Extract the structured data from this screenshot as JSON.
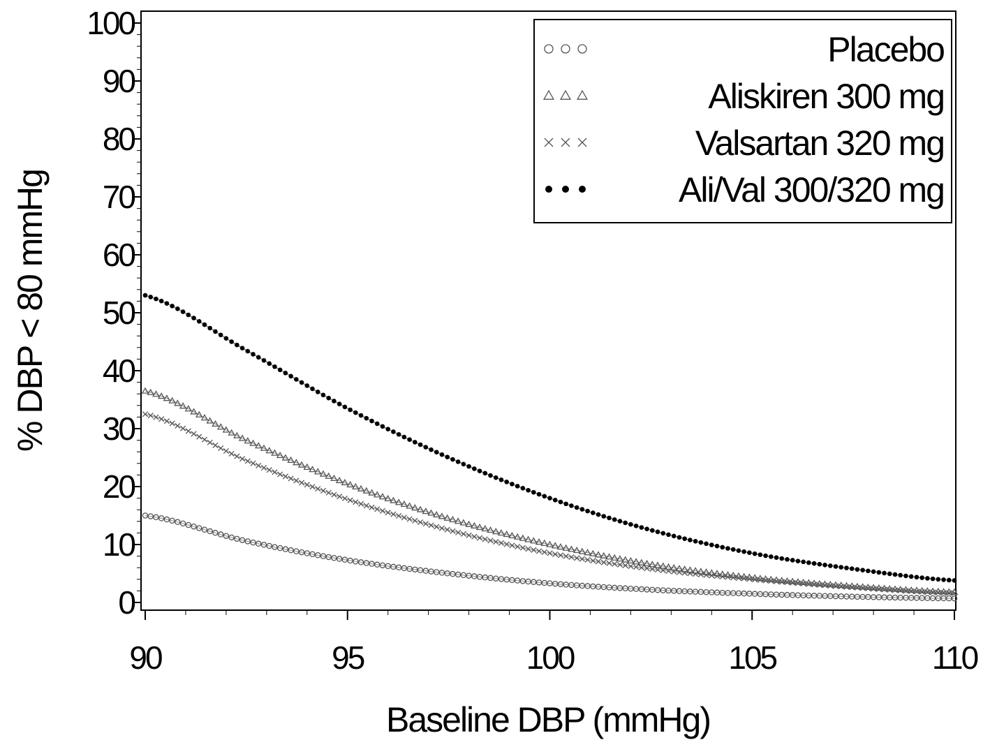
{
  "chart_data": {
    "type": "scatter",
    "title": "",
    "xlabel": "Baseline DBP (mmHg)",
    "ylabel": "% DBP < 80 mmHg",
    "xlim": [
      90,
      110
    ],
    "ylim": [
      0,
      100
    ],
    "xticks": [
      90,
      95,
      100,
      105,
      110
    ],
    "yticks": [
      0,
      10,
      20,
      30,
      40,
      50,
      60,
      70,
      80,
      90,
      100
    ],
    "grid": false,
    "legend_position": "top-right",
    "series": [
      {
        "name": "Placebo",
        "marker": "circle",
        "color": "#555555",
        "x": [
          90,
          92.5,
          95,
          97.5,
          100,
          102.5,
          105,
          107.5,
          110
        ],
        "y": [
          15.0,
          10.6,
          7.3,
          5.0,
          3.3,
          2.2,
          1.5,
          1.0,
          0.7
        ]
      },
      {
        "name": "Aliskiren 300 mg",
        "marker": "triangle",
        "color": "#555555",
        "x": [
          90,
          92.5,
          95,
          97.5,
          100,
          102.5,
          105,
          107.5,
          110
        ],
        "y": [
          36.5,
          28.0,
          20.5,
          14.5,
          10.0,
          6.6,
          4.3,
          2.8,
          1.8
        ]
      },
      {
        "name": "Valsartan 320 mg",
        "marker": "cross",
        "color": "#555555",
        "x": [
          90,
          92.5,
          95,
          97.5,
          100,
          102.5,
          105,
          107.5,
          110
        ],
        "y": [
          32.5,
          24.5,
          17.8,
          12.5,
          8.5,
          5.8,
          4.0,
          2.6,
          1.6
        ]
      },
      {
        "name": "Ali/Val 300/320 mg",
        "marker": "dot",
        "color": "#000000",
        "x": [
          90,
          92.5,
          95,
          97.5,
          100,
          102.5,
          105,
          107.5,
          110
        ],
        "y": [
          53.0,
          43.5,
          33.5,
          25.0,
          18.0,
          12.5,
          8.5,
          5.8,
          3.8
        ]
      }
    ]
  }
}
